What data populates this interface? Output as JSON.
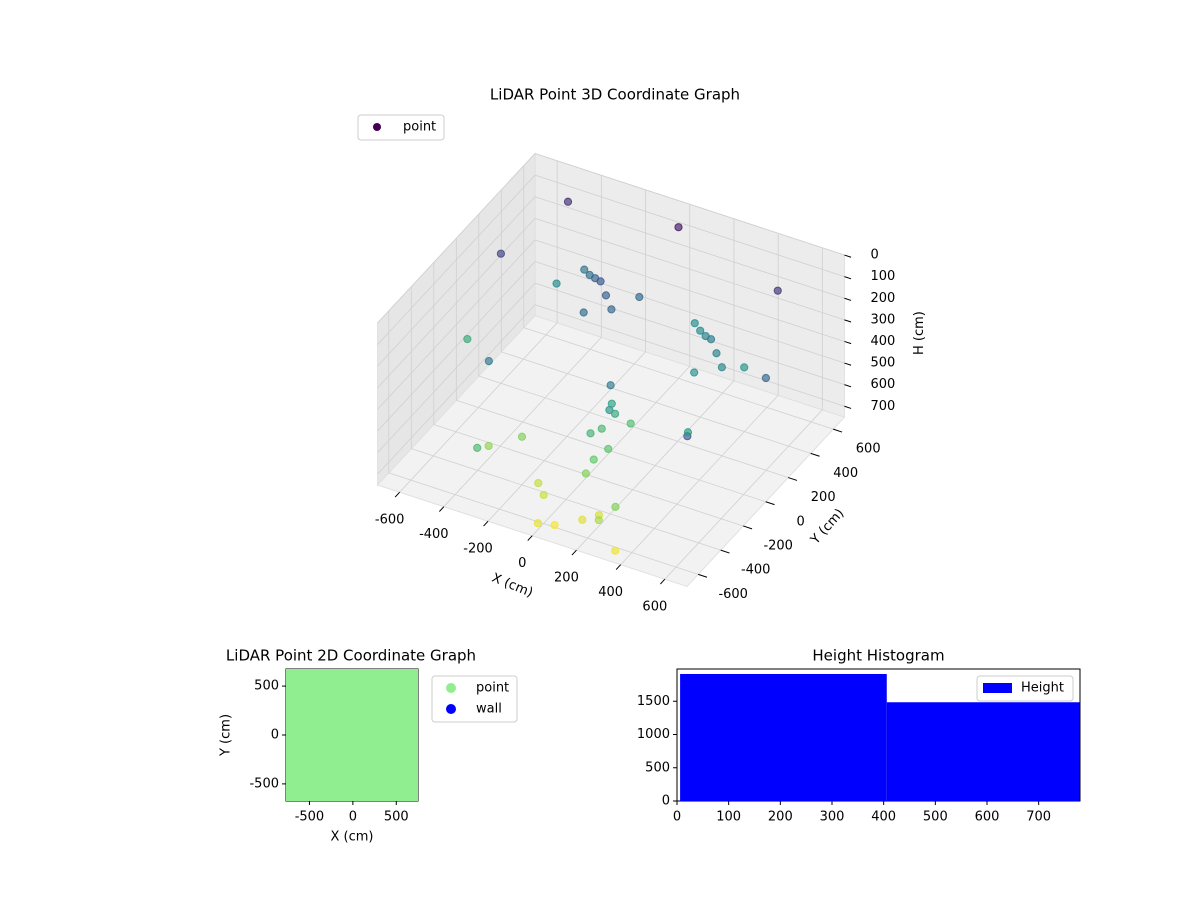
{
  "chart_data": [
    {
      "type": "scatter3d",
      "title": "LiDAR Point 3D Coordinate Graph",
      "xlabel": "X (cm)",
      "ylabel": "Y (cm)",
      "zlabel": "H (cm)",
      "colormap": "viridis",
      "z_inverted": true,
      "legend": "upper left",
      "xlim": [
        -700,
        700
      ],
      "ylim": [
        -700,
        700
      ],
      "zlim": [
        0,
        750
      ],
      "xticks": [
        -600,
        -400,
        -200,
        0,
        200,
        400,
        600
      ],
      "yticks": [
        -600,
        -400,
        -200,
        0,
        200,
        400,
        600
      ],
      "zticks": [
        0,
        100,
        200,
        300,
        400,
        500,
        600,
        700
      ],
      "series": [
        {
          "name": "point",
          "color": "#440154",
          "x": [
            -200,
            -250,
            -150,
            -300,
            -100,
            -350,
            -200,
            -50,
            300,
            250,
            350,
            200,
            400,
            150,
            300,
            450,
            100,
            120,
            80,
            60,
            140,
            100,
            90,
            110,
            70,
            130,
            -500,
            -600,
            -400,
            500,
            600,
            -650,
            650,
            0,
            -300,
            300,
            -450,
            450,
            200,
            -100,
            0,
            250,
            -250,
            150,
            50,
            -50,
            350,
            -350
          ],
          "y": [
            300,
            350,
            250,
            400,
            200,
            450,
            150,
            350,
            300,
            350,
            250,
            400,
            200,
            450,
            150,
            300,
            -200,
            -250,
            -150,
            -300,
            -100,
            -350,
            -400,
            -180,
            -220,
            -280,
            600,
            200,
            -300,
            500,
            -500,
            0,
            100,
            600,
            -600,
            -550,
            400,
            -200,
            -500,
            -450,
            -650,
            -600,
            -300,
            -550,
            -600,
            -500,
            -650,
            -400
          ],
          "z": [
            200,
            230,
            220,
            260,
            240,
            280,
            260,
            250,
            300,
            330,
            320,
            350,
            340,
            360,
            370,
            380,
            300,
            380,
            420,
            480,
            520,
            560,
            600,
            440,
            500,
            540,
            100,
            150,
            300,
            120,
            200,
            450,
            250,
            50,
            500,
            600,
            350,
            400,
            700,
            680,
            720,
            650,
            600,
            710,
            740,
            690,
            730,
            620
          ]
        }
      ]
    },
    {
      "type": "scatter",
      "title": "LiDAR Point 2D Coordinate Graph",
      "xlabel": "X (cm)",
      "ylabel": "Y (cm)",
      "legend": "outside right",
      "xlim": [
        -770,
        750
      ],
      "ylim": [
        -675,
        675
      ],
      "xticks": [
        -500,
        0,
        500
      ],
      "yticks": [
        -500,
        0,
        500
      ],
      "series": [
        {
          "name": "point",
          "color": "#90ee90",
          "x": [
            -650,
            -433,
            -217,
            0,
            217,
            433,
            650,
            -650,
            -433,
            -217,
            0,
            217,
            433,
            650,
            -650,
            -433,
            -217,
            0,
            217,
            433,
            650,
            -650,
            -433,
            -217,
            0,
            217,
            433,
            650,
            -650,
            -433,
            -217,
            0,
            217,
            433,
            650,
            -650,
            -433,
            -217,
            0,
            217,
            433,
            650,
            -650,
            -433,
            -217,
            0,
            217,
            433,
            650
          ],
          "y": [
            -600,
            -600,
            -600,
            -600,
            -600,
            -600,
            -600,
            -400,
            -400,
            -400,
            -400,
            -400,
            -400,
            -400,
            -200,
            -200,
            -200,
            -200,
            -200,
            -200,
            -200,
            0,
            0,
            0,
            0,
            0,
            0,
            0,
            200,
            200,
            200,
            200,
            200,
            200,
            200,
            400,
            400,
            400,
            400,
            400,
            400,
            400,
            600,
            600,
            600,
            600,
            600,
            600,
            600
          ]
        },
        {
          "name": "wall",
          "color": "#0000ff",
          "x": [],
          "y": []
        }
      ]
    },
    {
      "type": "histogram",
      "title": "Height Histogram",
      "legend": "upper right",
      "series": [
        {
          "name": "Height",
          "color": "#0000ff",
          "bins": [
            6,
            406,
            779
          ],
          "counts": [
            1910,
            1485
          ]
        }
      ],
      "xlim": [
        0,
        780
      ],
      "ylim": [
        0,
        1985
      ],
      "xticks": [
        0,
        100,
        200,
        300,
        400,
        500,
        600,
        700
      ],
      "yticks": [
        0,
        500,
        1000,
        1500
      ]
    }
  ]
}
